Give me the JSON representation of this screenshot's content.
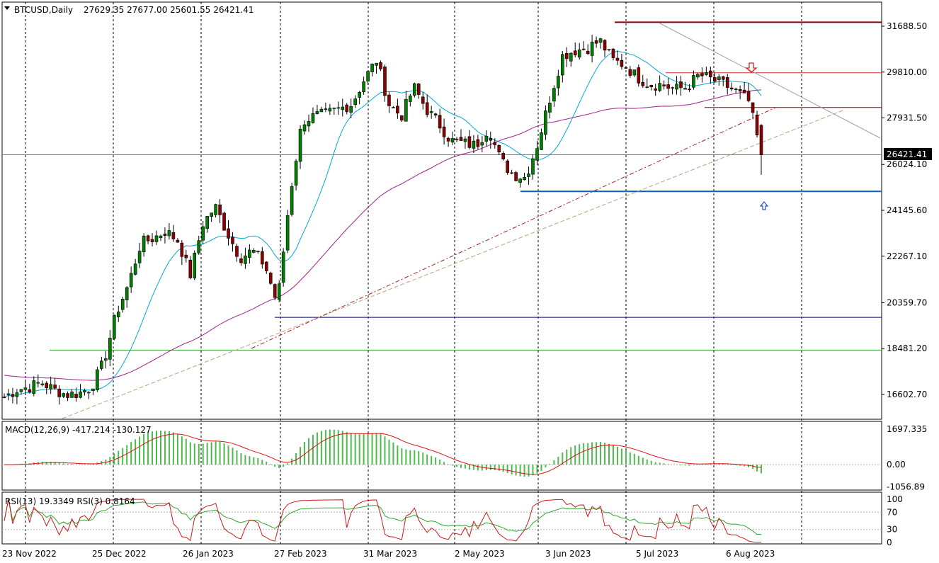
{
  "header": {
    "symbol": "BTCUSD,Daily",
    "ohlc": "27629.35 27677.00 25601.55 26421.41"
  },
  "macd_header": "MACD(12,26,9) -417.214 -130.127",
  "rsi_header": "RSI(13) 19.3349  RSI(3) 0.8164",
  "current_price_label": "26421.41",
  "colors": {
    "bull": "#008000",
    "bear": "#8B0000",
    "ma_fast": "#00A8D8",
    "ma_slow": "#A0208A",
    "macd_hist": "#4CBB4C",
    "macd_signal": "#E01010",
    "rsi13": "#2EA62E",
    "rsi3": "#D01818",
    "hline_green": "#30A030",
    "hline_blue": "#1060C0",
    "hline_navy": "#000080",
    "hline_dark_red": "#8B0000",
    "hline_red": "#D03030"
  },
  "chart_data": [
    {
      "type": "candlestick",
      "title": "BTCUSD,Daily",
      "x_tick_labels": [
        "23 Nov 2022",
        "25 Dec 2022",
        "26 Jan 2023",
        "27 Feb 2023",
        "31 Mar 2023",
        "2 May 2023",
        "3 Jun 2023",
        "5 Jul 2023",
        "6 Aug 2023"
      ],
      "y_tick_labels": [
        "31688.50",
        "29810.00",
        "27931.50",
        "26024.10",
        "24145.60",
        "22267.10",
        "20359.70",
        "18481.20",
        "16602.70"
      ],
      "ylim": [
        15900,
        32500
      ],
      "current_price": 26421.41,
      "horizontal_levels": [
        31850,
        29780,
        28360,
        24920,
        19760,
        18420,
        26421.41
      ],
      "sample_closes": [
        16500,
        16800,
        16900,
        17100,
        16800,
        16600,
        16650,
        16900,
        17900,
        19900,
        21100,
        22800,
        23000,
        23300,
        22900,
        21500,
        23600,
        24300,
        23200,
        22200,
        22500,
        21900,
        20300,
        24700,
        27800,
        28000,
        28100,
        28300,
        28500,
        29500,
        30300,
        28500,
        28000,
        29200,
        28300,
        27700,
        27000,
        26900,
        26800,
        27500,
        26200,
        25600,
        25500,
        26900,
        28800,
        30500,
        30700,
        30800,
        31100,
        30300,
        30100,
        29600,
        29300,
        29300,
        29100,
        29200,
        29700,
        29500,
        29300,
        29000,
        28600,
        26421.41
      ]
    },
    {
      "type": "macd",
      "title": "MACD(12,26,9)",
      "values": [
        -417.214,
        -130.127
      ],
      "y_tick_labels": [
        "1697.335",
        "0.00",
        "-1056.89"
      ],
      "ylim": [
        -1150,
        1800
      ]
    },
    {
      "type": "rsi",
      "title": "RSI(13) / RSI(3)",
      "values": [
        19.3349,
        0.8164
      ],
      "y_tick_labels": [
        "100",
        "70",
        "30",
        "0"
      ],
      "ylim": [
        0,
        100
      ]
    }
  ]
}
